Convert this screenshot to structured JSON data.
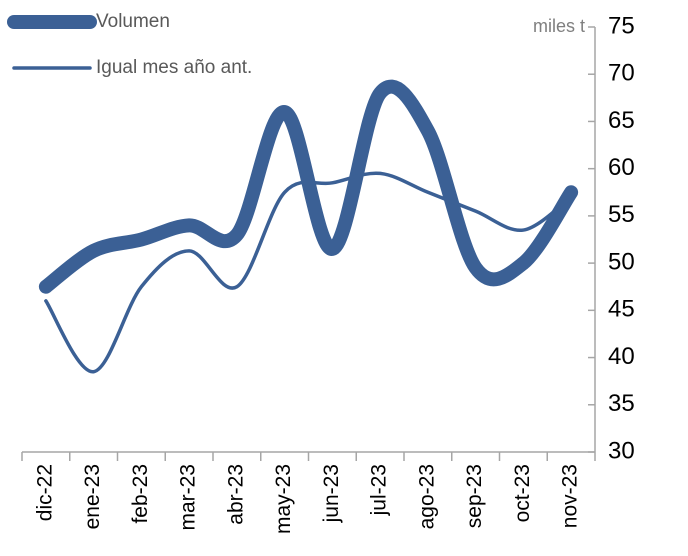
{
  "chart_data": {
    "type": "line",
    "unit_label": "miles t",
    "categories": [
      "dic-22",
      "ene-23",
      "feb-23",
      "mar-23",
      "abr-23",
      "may-23",
      "jun-23",
      "jul-23",
      "ago-23",
      "sep-23",
      "oct-23",
      "nov-23"
    ],
    "series": [
      {
        "name": "Volumen",
        "color": "#3b6095",
        "values": [
          47.5,
          51.3,
          52.5,
          54,
          53,
          66,
          51.5,
          68,
          64,
          49.5,
          50,
          57.5
        ]
      },
      {
        "name": "Igual mes año ant.",
        "color": "#3b6095",
        "values": [
          46,
          38.5,
          47.5,
          51.3,
          47.5,
          57.5,
          58.5,
          59.5,
          57.5,
          55.5,
          53.5,
          57
        ]
      }
    ],
    "ylim": [
      30,
      75
    ],
    "yticks": [
      30,
      35,
      40,
      45,
      50,
      55,
      60,
      65,
      70,
      75
    ],
    "y_axis_side": "right",
    "grid": false,
    "legend": "top-left",
    "smooth": true
  }
}
